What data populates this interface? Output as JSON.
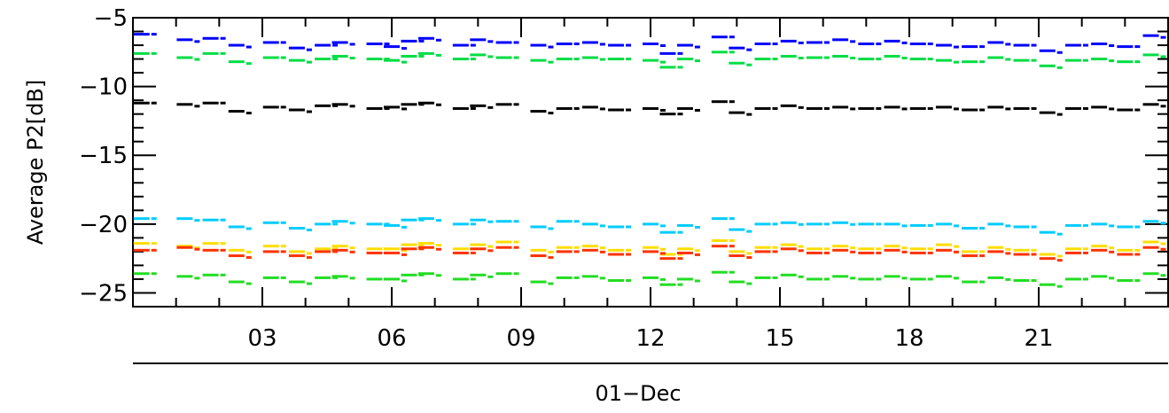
{
  "chart_data": {
    "type": "scatter",
    "title": "",
    "xlabel": "01−Dec",
    "ylabel": "Average  P2[dB]",
    "xlim": [
      0,
      24
    ],
    "ylim": [
      -26,
      -5
    ],
    "x_tick_labels": [
      "03",
      "06",
      "09",
      "12",
      "15",
      "18",
      "21"
    ],
    "x_tick_values": [
      3,
      6,
      9,
      12,
      15,
      18,
      21
    ],
    "y_tick_labels": [
      "−5",
      "−10",
      "−15",
      "−20",
      "−25"
    ],
    "y_tick_values": [
      -5,
      -10,
      -15,
      -20,
      -25
    ],
    "y_minor_step": 1,
    "x_minor_step": 1,
    "grid": false,
    "legend": "none",
    "x_unit": "hour of day",
    "series": [
      {
        "color": "#0000ff",
        "x": [
          0.2,
          1.2,
          1.8,
          2.4,
          3.2,
          3.8,
          4.4,
          4.8,
          5.6,
          6.0,
          6.4,
          6.8,
          7.6,
          8.0,
          8.6,
          9.4,
          10.0,
          10.6,
          11.2,
          12.0,
          12.4,
          12.8,
          13.6,
          14.0,
          14.6,
          15.2,
          15.8,
          16.4,
          17.0,
          17.6,
          18.2,
          18.8,
          19.4,
          20.0,
          20.6,
          21.2,
          21.8,
          22.4,
          23.0,
          23.6
        ],
        "y": [
          -6.2,
          -6.6,
          -6.5,
          -7.0,
          -6.8,
          -7.2,
          -7.0,
          -6.8,
          -6.9,
          -7.1,
          -6.7,
          -6.5,
          -7.0,
          -6.6,
          -6.8,
          -7.0,
          -6.9,
          -6.8,
          -7.0,
          -6.9,
          -7.6,
          -7.0,
          -6.4,
          -7.2,
          -6.9,
          -6.7,
          -6.8,
          -6.6,
          -6.9,
          -6.7,
          -6.9,
          -7.0,
          -7.1,
          -6.8,
          -7.0,
          -7.4,
          -7.0,
          -6.9,
          -7.1,
          -6.3
        ]
      },
      {
        "color": "#00dd44",
        "x": [
          0.2,
          1.2,
          1.8,
          2.4,
          3.2,
          3.8,
          4.4,
          4.8,
          5.6,
          6.0,
          6.4,
          6.8,
          7.6,
          8.0,
          8.6,
          9.4,
          10.0,
          10.6,
          11.2,
          12.0,
          12.4,
          12.8,
          13.6,
          14.0,
          14.6,
          15.2,
          15.8,
          16.4,
          17.0,
          17.6,
          18.2,
          18.8,
          19.4,
          20.0,
          20.6,
          21.2,
          21.8,
          22.4,
          23.0,
          23.6
        ],
        "y": [
          -7.6,
          -7.9,
          -7.6,
          -8.2,
          -7.9,
          -8.1,
          -8.0,
          -7.8,
          -8.0,
          -8.1,
          -7.8,
          -7.6,
          -8.0,
          -7.7,
          -7.9,
          -8.1,
          -8.0,
          -7.9,
          -8.0,
          -8.1,
          -8.6,
          -8.0,
          -7.5,
          -8.3,
          -8.0,
          -7.8,
          -7.9,
          -7.8,
          -8.0,
          -7.8,
          -8.0,
          -8.1,
          -8.2,
          -7.9,
          -8.1,
          -8.5,
          -8.1,
          -8.0,
          -8.2,
          -7.7
        ]
      },
      {
        "color": "#000000",
        "x": [
          0.2,
          1.2,
          1.8,
          2.4,
          3.2,
          3.8,
          4.4,
          4.8,
          5.6,
          6.0,
          6.4,
          6.8,
          7.6,
          8.0,
          8.6,
          9.4,
          10.0,
          10.6,
          11.2,
          12.0,
          12.4,
          12.8,
          13.6,
          14.0,
          14.6,
          15.2,
          15.8,
          16.4,
          17.0,
          17.6,
          18.2,
          18.8,
          19.4,
          20.0,
          20.6,
          21.2,
          21.8,
          22.4,
          23.0,
          23.6
        ],
        "y": [
          -11.2,
          -11.3,
          -11.2,
          -11.8,
          -11.5,
          -11.7,
          -11.4,
          -11.3,
          -11.6,
          -11.5,
          -11.3,
          -11.2,
          -11.6,
          -11.4,
          -11.3,
          -11.8,
          -11.6,
          -11.5,
          -11.7,
          -11.6,
          -12.0,
          -11.6,
          -11.1,
          -11.9,
          -11.6,
          -11.4,
          -11.6,
          -11.5,
          -11.6,
          -11.5,
          -11.6,
          -11.5,
          -11.7,
          -11.5,
          -11.6,
          -11.9,
          -11.6,
          -11.5,
          -11.7,
          -11.3
        ]
      },
      {
        "color": "#00ccff",
        "x": [
          0.2,
          1.2,
          1.8,
          2.4,
          3.2,
          3.8,
          4.4,
          4.8,
          5.6,
          6.0,
          6.4,
          6.8,
          7.6,
          8.0,
          8.6,
          9.4,
          10.0,
          10.6,
          11.2,
          12.0,
          12.4,
          12.8,
          13.6,
          14.0,
          14.6,
          15.2,
          15.8,
          16.4,
          17.0,
          17.6,
          18.2,
          18.8,
          19.4,
          20.0,
          20.6,
          21.2,
          21.8,
          22.4,
          23.0,
          23.6
        ],
        "y": [
          -19.6,
          -19.6,
          -19.7,
          -20.2,
          -19.9,
          -20.3,
          -20.0,
          -19.8,
          -20.0,
          -20.1,
          -19.7,
          -19.6,
          -20.0,
          -19.7,
          -19.8,
          -20.2,
          -19.8,
          -20.0,
          -20.2,
          -20.0,
          -20.6,
          -20.1,
          -19.6,
          -20.4,
          -20.0,
          -19.9,
          -20.0,
          -19.9,
          -20.0,
          -20.0,
          -20.1,
          -20.0,
          -20.3,
          -20.0,
          -20.2,
          -20.6,
          -20.1,
          -20.0,
          -20.2,
          -19.8
        ]
      },
      {
        "color": "#ffdd00",
        "x": [
          0.2,
          1.2,
          1.8,
          2.4,
          3.2,
          3.8,
          4.4,
          4.8,
          5.6,
          6.0,
          6.4,
          6.8,
          7.6,
          8.0,
          8.6,
          9.4,
          10.0,
          10.6,
          11.2,
          12.0,
          12.4,
          12.8,
          13.6,
          14.0,
          14.6,
          15.2,
          15.8,
          16.4,
          17.0,
          17.6,
          18.2,
          18.8,
          19.4,
          20.0,
          20.6,
          21.2,
          21.8,
          22.4,
          23.0,
          23.6
        ],
        "y": [
          -21.4,
          -21.6,
          -21.4,
          -21.9,
          -21.6,
          -22.0,
          -21.8,
          -21.6,
          -21.8,
          -21.8,
          -21.5,
          -21.4,
          -21.8,
          -21.5,
          -21.3,
          -21.9,
          -21.7,
          -21.6,
          -21.9,
          -21.7,
          -22.2,
          -21.8,
          -21.2,
          -22.0,
          -21.7,
          -21.5,
          -21.8,
          -21.6,
          -21.8,
          -21.6,
          -21.8,
          -21.5,
          -22.0,
          -21.7,
          -21.9,
          -22.2,
          -21.8,
          -21.6,
          -21.9,
          -21.3
        ]
      },
      {
        "color": "#ff3300",
        "x": [
          0.2,
          1.2,
          1.8,
          2.4,
          3.2,
          3.8,
          4.4,
          4.8,
          5.6,
          6.0,
          6.4,
          6.8,
          7.6,
          8.0,
          8.6,
          9.4,
          10.0,
          10.6,
          11.2,
          12.0,
          12.4,
          12.8,
          13.6,
          14.0,
          14.6,
          15.2,
          15.8,
          16.4,
          17.0,
          17.6,
          18.2,
          18.8,
          19.4,
          20.0,
          20.6,
          21.2,
          21.8,
          22.4,
          23.0,
          23.6
        ],
        "y": [
          -21.9,
          -21.7,
          -21.9,
          -22.3,
          -22.0,
          -22.3,
          -22.0,
          -21.9,
          -22.1,
          -22.1,
          -21.8,
          -21.7,
          -22.1,
          -21.8,
          -21.7,
          -22.3,
          -22.0,
          -21.9,
          -22.2,
          -22.0,
          -22.5,
          -22.1,
          -21.6,
          -22.3,
          -22.0,
          -21.8,
          -22.1,
          -21.9,
          -22.1,
          -21.9,
          -22.1,
          -21.9,
          -22.3,
          -22.0,
          -22.2,
          -22.5,
          -22.1,
          -21.9,
          -22.2,
          -21.7
        ]
      },
      {
        "color": "#22dd22",
        "x": [
          0.2,
          1.2,
          1.8,
          2.4,
          3.2,
          3.8,
          4.4,
          4.8,
          5.6,
          6.0,
          6.4,
          6.8,
          7.6,
          8.0,
          8.6,
          9.4,
          10.0,
          10.6,
          11.2,
          12.0,
          12.4,
          12.8,
          13.6,
          14.0,
          14.6,
          15.2,
          15.8,
          16.4,
          17.0,
          17.6,
          18.2,
          18.8,
          19.4,
          20.0,
          20.6,
          21.2,
          21.8,
          22.4,
          23.0,
          23.6
        ],
        "y": [
          -23.6,
          -23.8,
          -23.7,
          -24.2,
          -23.9,
          -24.2,
          -23.9,
          -23.8,
          -24.0,
          -24.0,
          -23.7,
          -23.6,
          -24.0,
          -23.7,
          -23.6,
          -24.2,
          -23.9,
          -23.8,
          -24.1,
          -23.9,
          -24.4,
          -24.0,
          -23.5,
          -24.2,
          -23.9,
          -23.7,
          -24.0,
          -23.8,
          -24.0,
          -23.8,
          -24.0,
          -23.8,
          -24.2,
          -23.9,
          -24.1,
          -24.4,
          -24.0,
          -23.8,
          -24.1,
          -23.6
        ]
      }
    ]
  }
}
